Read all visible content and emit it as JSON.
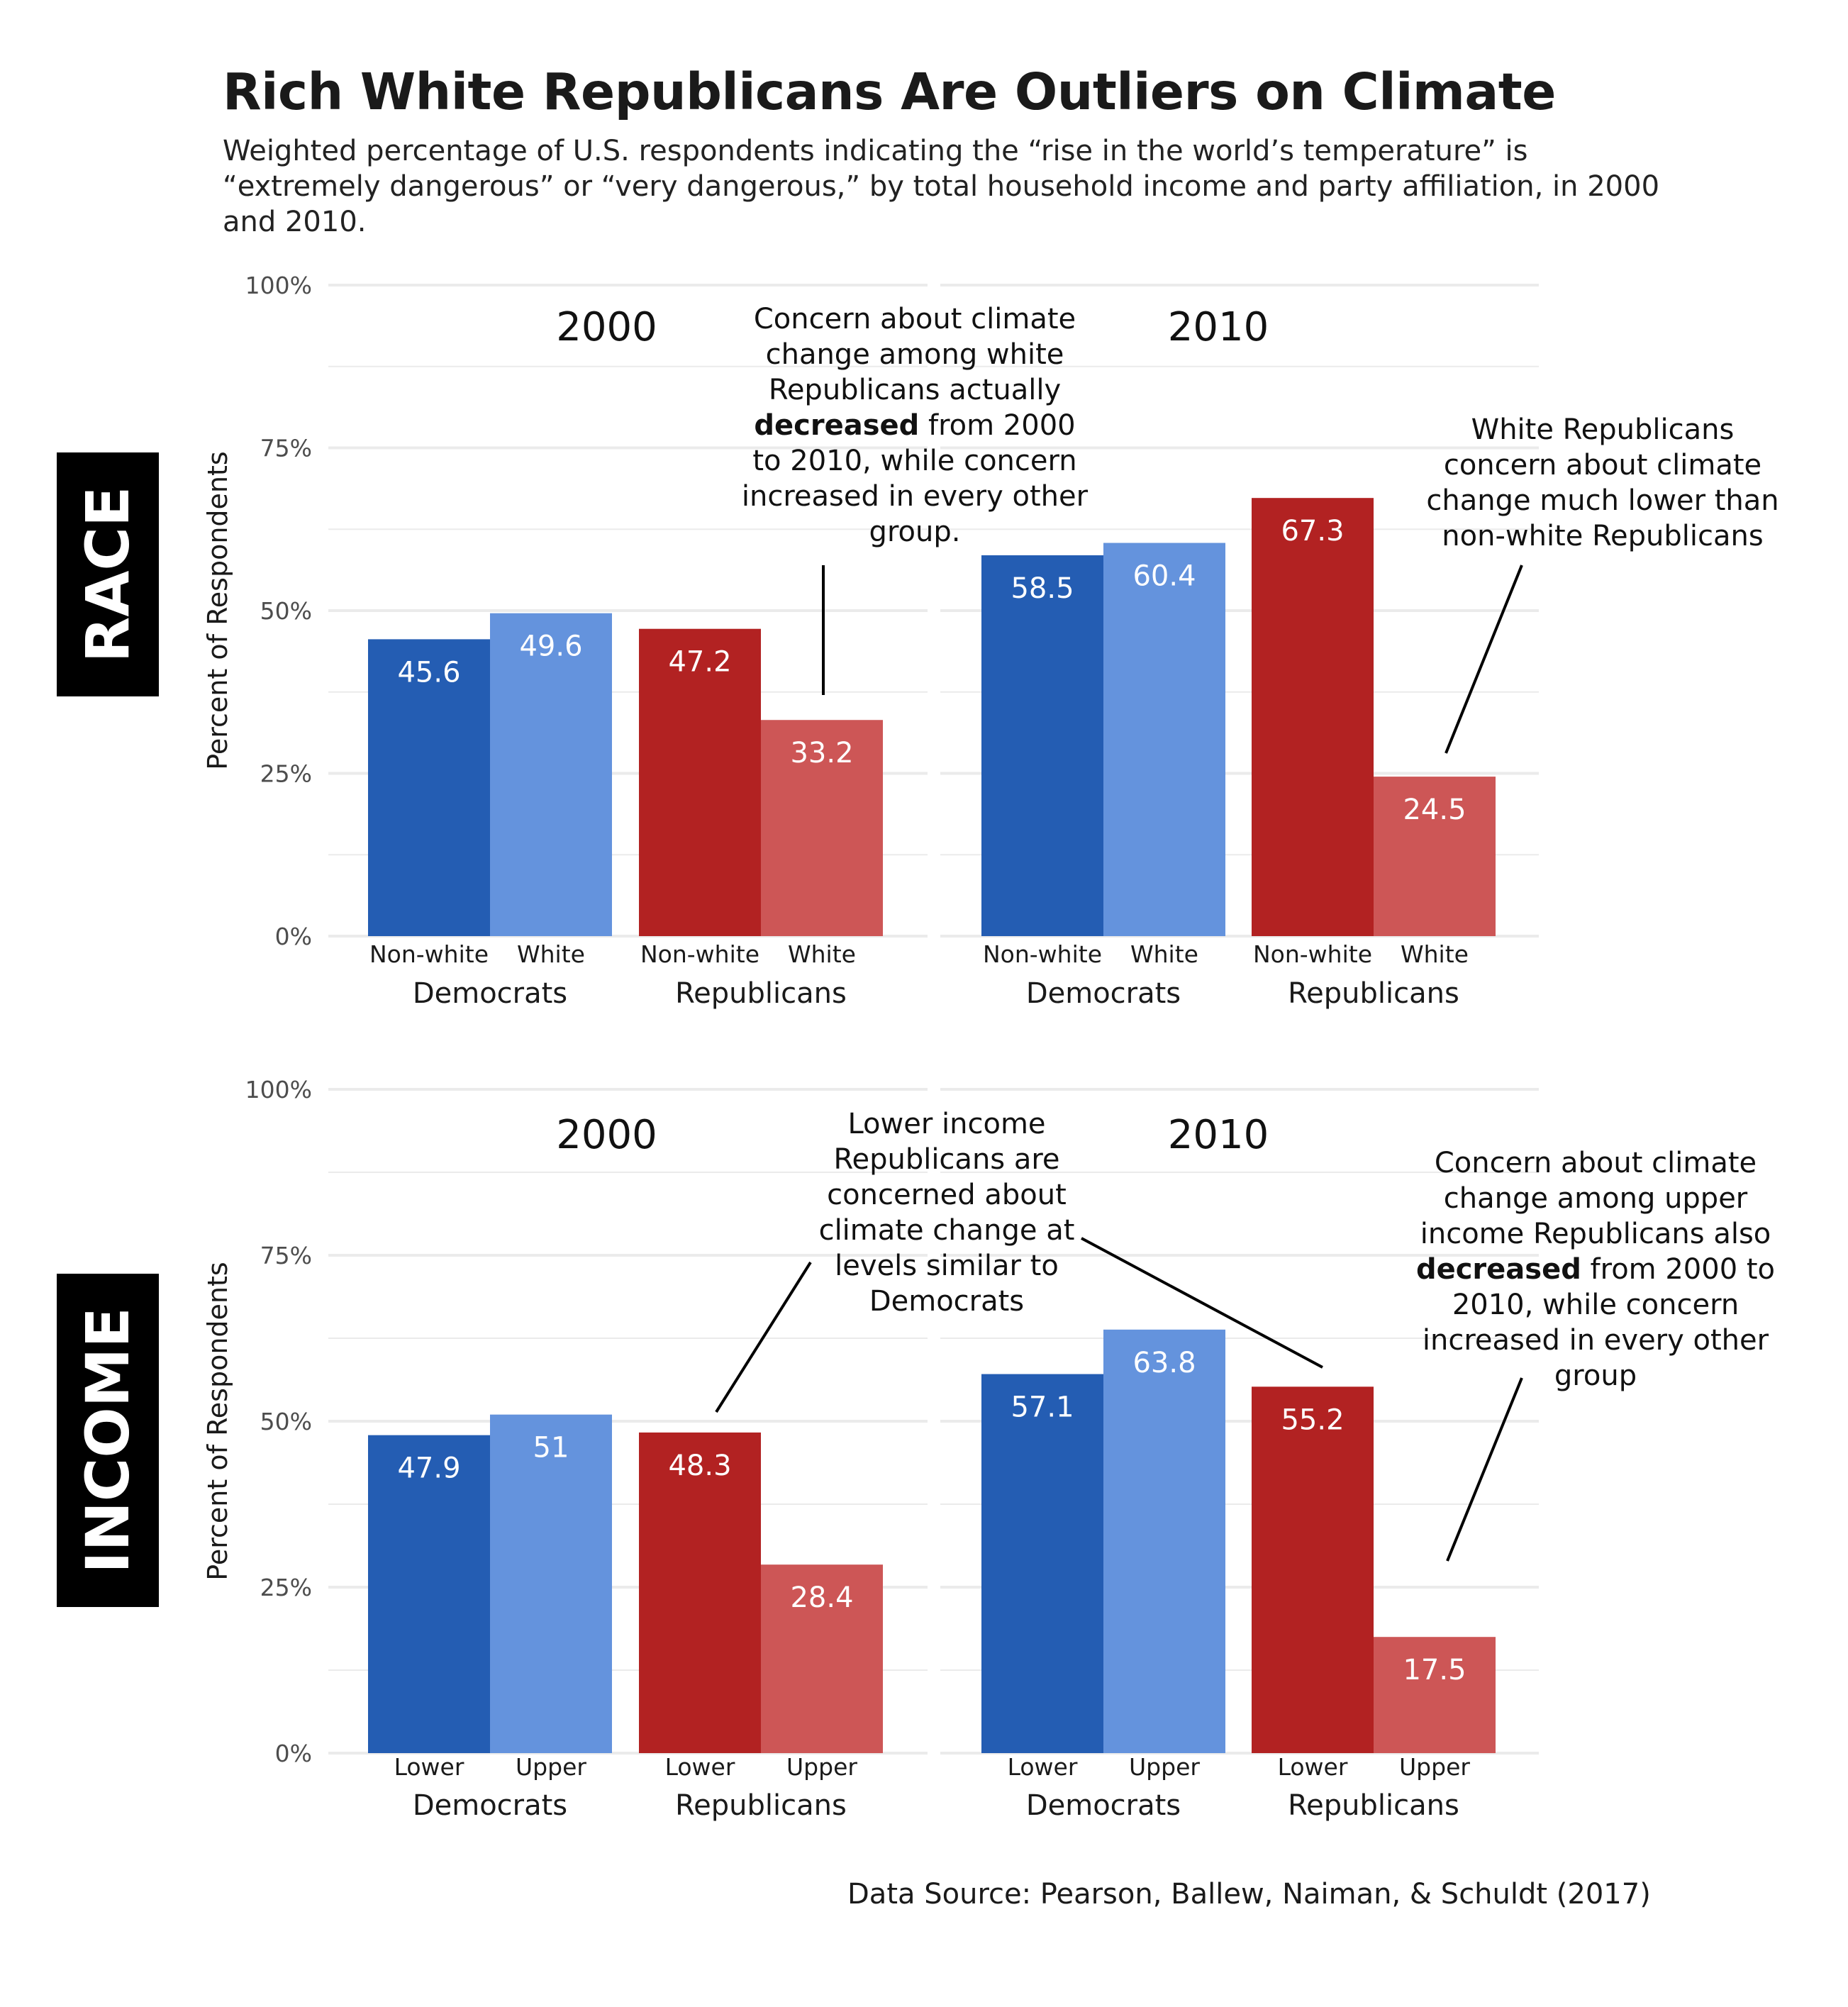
{
  "title": "Rich White Republicans Are Outliers on Climate",
  "subtitle": "Weighted percentage of U.S. respondents indicating the “rise in the world’s temperature” is “extremely dangerous” or “very dangerous,” by total household income and party affiliation, in 2000 and 2010.",
  "source": "Data Source: Pearson, Ballew, Naiman, & Schuldt (2017)",
  "row_tags": {
    "race": "RACE",
    "income": "INCOME"
  },
  "annotations": {
    "race_2000": {
      "pre": "Concern about climate change among white Republicans actually ",
      "bold": "decreased",
      "post": " from 2000 to 2010, while concern increased in every other group."
    },
    "race_2010": {
      "text": "White Republicans concern about climate change much lower than non-white Republicans"
    },
    "income_2000": {
      "text": "Lower income Republicans are concerned about climate change at levels similar to Democrats"
    },
    "income_2010": {
      "pre": "Concern about climate change among upper income Republicans also ",
      "bold": "decreased",
      "post": " from 2000 to 2010, while concern increased in every other group"
    }
  },
  "colors": {
    "dem_dark": "#245DB3",
    "dem_light": "#6493DD",
    "rep_dark": "#B22222",
    "rep_light": "#CD5656",
    "grid": "#ebebeb",
    "axis_text": "#4d4d4d"
  },
  "chart_data": [
    {
      "type": "bar",
      "row": "race",
      "ylabel": "Percent of Respondents",
      "ylim": [
        0,
        100
      ],
      "yticks": [
        "0%",
        "25%",
        "50%",
        "75%",
        "100%"
      ],
      "grid": true,
      "panels": [
        {
          "facet": "2000",
          "groups": [
            {
              "name": "Democrats",
              "bars": [
                {
                  "label": "Non-white",
                  "value": 45.6
                },
                {
                  "label": "White",
                  "value": 49.6
                }
              ]
            },
            {
              "name": "Republicans",
              "bars": [
                {
                  "label": "Non-white",
                  "value": 47.2
                },
                {
                  "label": "White",
                  "value": 33.2
                }
              ]
            }
          ]
        },
        {
          "facet": "2010",
          "groups": [
            {
              "name": "Democrats",
              "bars": [
                {
                  "label": "Non-white",
                  "value": 58.5
                },
                {
                  "label": "White",
                  "value": 60.4
                }
              ]
            },
            {
              "name": "Republicans",
              "bars": [
                {
                  "label": "Non-white",
                  "value": 67.3
                },
                {
                  "label": "White",
                  "value": 24.5
                }
              ]
            }
          ]
        }
      ]
    },
    {
      "type": "bar",
      "row": "income",
      "ylabel": "Percent of Respondents",
      "ylim": [
        0,
        100
      ],
      "yticks": [
        "0%",
        "25%",
        "50%",
        "75%",
        "100%"
      ],
      "grid": true,
      "panels": [
        {
          "facet": "2000",
          "groups": [
            {
              "name": "Democrats",
              "bars": [
                {
                  "label": "Lower",
                  "value": 47.9
                },
                {
                  "label": "Upper",
                  "value": 51
                }
              ]
            },
            {
              "name": "Republicans",
              "bars": [
                {
                  "label": "Lower",
                  "value": 48.3
                },
                {
                  "label": "Upper",
                  "value": 28.4
                }
              ]
            }
          ]
        },
        {
          "facet": "2010",
          "groups": [
            {
              "name": "Democrats",
              "bars": [
                {
                  "label": "Lower",
                  "value": 57.1
                },
                {
                  "label": "Upper",
                  "value": 63.8
                }
              ]
            },
            {
              "name": "Republicans",
              "bars": [
                {
                  "label": "Lower",
                  "value": 55.2
                },
                {
                  "label": "Upper",
                  "value": 17.5
                }
              ]
            }
          ]
        }
      ]
    }
  ]
}
